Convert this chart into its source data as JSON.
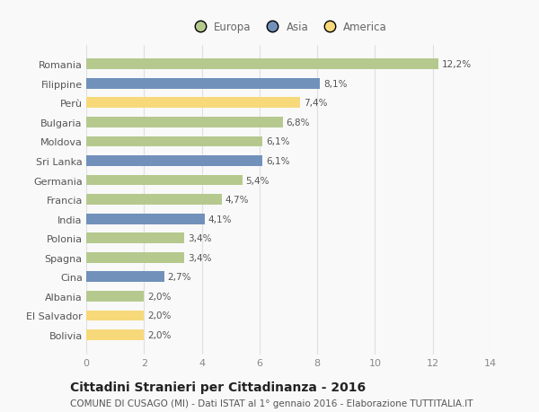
{
  "categories": [
    "Romania",
    "Filippine",
    "Perù",
    "Bulgaria",
    "Moldova",
    "Sri Lanka",
    "Germania",
    "Francia",
    "India",
    "Polonia",
    "Spagna",
    "Cina",
    "Albania",
    "El Salvador",
    "Bolivia"
  ],
  "values": [
    12.2,
    8.1,
    7.4,
    6.8,
    6.1,
    6.1,
    5.4,
    4.7,
    4.1,
    3.4,
    3.4,
    2.7,
    2.0,
    2.0,
    2.0
  ],
  "labels": [
    "12,2%",
    "8,1%",
    "7,4%",
    "6,8%",
    "6,1%",
    "6,1%",
    "5,4%",
    "4,7%",
    "4,1%",
    "3,4%",
    "3,4%",
    "2,7%",
    "2,0%",
    "2,0%",
    "2,0%"
  ],
  "continents": [
    "Europa",
    "Asia",
    "America",
    "Europa",
    "Europa",
    "Asia",
    "Europa",
    "Europa",
    "Asia",
    "Europa",
    "Europa",
    "Asia",
    "Europa",
    "America",
    "America"
  ],
  "colors": {
    "Europa": "#b5c98e",
    "Asia": "#7191bb",
    "America": "#f7d97a"
  },
  "xlim": [
    0,
    14
  ],
  "xticks": [
    0,
    2,
    4,
    6,
    8,
    10,
    12,
    14
  ],
  "title": "Cittadini Stranieri per Cittadinanza - 2016",
  "subtitle": "COMUNE DI CUSAGO (MI) - Dati ISTAT al 1° gennaio 2016 - Elaborazione TUTTITALIA.IT",
  "background_color": "#f9f9f9",
  "grid_color": "#e0e0e0",
  "bar_height": 0.55,
  "title_fontsize": 10,
  "subtitle_fontsize": 7.5,
  "label_fontsize": 7.5,
  "ytick_fontsize": 8,
  "xtick_fontsize": 8,
  "legend_fontsize": 8.5
}
